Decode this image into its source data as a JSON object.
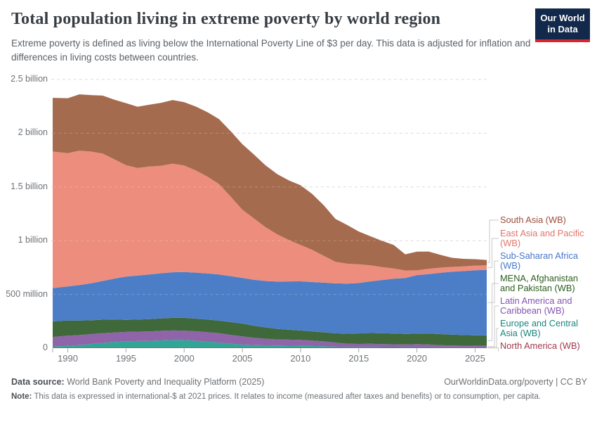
{
  "header": {
    "title": "Total population living in extreme poverty by world region",
    "subtitle": "Extreme poverty is defined as living below the International Poverty Line of $3 per day. This data is adjusted for inflation and differences in living costs between countries.",
    "logo_line1": "Our World",
    "logo_line2": "in Data",
    "logo_bg": "#13294b",
    "logo_accent": "#d8252e"
  },
  "footer": {
    "source_label": "Data source:",
    "source_value": "World Bank Poverty and Inequality Platform (2025)",
    "attribution": "OurWorldinData.org/poverty | CC BY",
    "note_label": "Note:",
    "note_value": "This data is expressed in international-$ at 2021 prices. It relates to income (measured after taxes and benefits) or to consumption, per capita."
  },
  "chart_data": {
    "type": "area",
    "stacked": true,
    "title": "Total population living in extreme poverty by world region",
    "xlabel": "",
    "ylabel": "",
    "unit": "millions of people",
    "grid": "dashed-horizontal",
    "legend_position": "right",
    "xlim": [
      1989,
      2026
    ],
    "ylim": [
      0,
      2500
    ],
    "xticks": [
      1990,
      1995,
      2000,
      2005,
      2010,
      2015,
      2020,
      2025
    ],
    "yticks": [
      {
        "value": 0,
        "label": "0"
      },
      {
        "value": 500,
        "label": "500 million"
      },
      {
        "value": 1000,
        "label": "1 billion"
      },
      {
        "value": 1500,
        "label": "1.5 billion"
      },
      {
        "value": 2000,
        "label": "2 billion"
      },
      {
        "value": 2500,
        "label": "2.5 billion"
      }
    ],
    "x": [
      1989,
      1990,
      1991,
      1992,
      1993,
      1994,
      1995,
      1996,
      1997,
      1998,
      1999,
      2000,
      2001,
      2002,
      2003,
      2004,
      2005,
      2006,
      2007,
      2008,
      2009,
      2010,
      2011,
      2012,
      2013,
      2014,
      2015,
      2016,
      2017,
      2018,
      2019,
      2020,
      2021,
      2022,
      2023,
      2024,
      2025,
      2026
    ],
    "series_note": "values in millions, listed bottom-to-top of the stack; legend shows reverse order",
    "series": [
      {
        "id": "north-america",
        "name": "North America (WB)",
        "color": "#9A3E53",
        "label_color": "#A03A4C",
        "values": [
          4,
          4,
          4,
          4,
          4,
          4,
          4,
          4,
          4,
          4,
          4,
          4,
          4,
          4,
          4,
          4,
          4,
          4,
          4,
          4,
          4,
          4,
          4,
          4,
          3,
          3,
          3,
          3,
          3,
          3,
          3,
          3,
          3,
          3,
          3,
          3,
          3,
          3
        ]
      },
      {
        "id": "europe-central-asia",
        "name": "Europe and Central Asia (WB)",
        "color": "#32A596",
        "label_color": "#19857C",
        "values": [
          12,
          17,
          25,
          35,
          45,
          52,
          60,
          62,
          64,
          68,
          72,
          72,
          65,
          55,
          48,
          38,
          29,
          25,
          22,
          20,
          19,
          18,
          16,
          14,
          11,
          9,
          8,
          8,
          7,
          7,
          6,
          6,
          6,
          5,
          5,
          5,
          5,
          5
        ]
      },
      {
        "id": "latin-america-caribbean",
        "name": "Latin America and Caribbean (WB)",
        "color": "#8F64A8",
        "label_color": "#8455B1",
        "values": [
          88,
          95,
          93,
          92,
          91,
          89,
          87,
          88,
          88,
          89,
          88,
          87,
          88,
          90,
          88,
          82,
          76,
          68,
          62,
          57,
          56,
          55,
          50,
          45,
          38,
          30,
          28,
          30,
          28,
          26,
          25,
          28,
          26,
          20,
          17,
          15,
          14,
          14
        ]
      },
      {
        "id": "mena-afghanistan-pakistan",
        "name": "MENA, Afghanistan and Pakistan (WB)",
        "color": "#3F683B",
        "label_color": "#2C5E1E",
        "values": [
          145,
          142,
          135,
          128,
          125,
          122,
          112,
          112,
          114,
          116,
          118,
          119,
          118,
          117,
          116,
          118,
          120,
          112,
          105,
          98,
          92,
          87,
          85,
          84,
          86,
          92,
          98,
          100,
          101,
          100,
          99,
          98,
          102,
          103,
          101,
          99,
          98,
          97
        ]
      },
      {
        "id": "sub-saharan-africa",
        "name": "Sub-Saharan Africa (WB)",
        "color": "#4C7EC7",
        "label_color": "#4877C8",
        "values": [
          310,
          316,
          330,
          345,
          360,
          380,
          403,
          410,
          415,
          420,
          424,
          426,
          428,
          430,
          430,
          428,
          425,
          428,
          432,
          440,
          450,
          458,
          460,
          462,
          465,
          467,
          469,
          480,
          495,
          510,
          520,
          545,
          552,
          570,
          585,
          595,
          605,
          610
        ]
      },
      {
        "id": "east-asia-pacific",
        "name": "East Asia and Pacific (WB)",
        "color": "#ED8D7D",
        "label_color": "#E0766A",
        "values": [
          1270,
          1241,
          1250,
          1225,
          1185,
          1110,
          1036,
          1000,
          1005,
          1000,
          1010,
          992,
          950,
          900,
          840,
          740,
          633,
          570,
          500,
          440,
          385,
          338,
          300,
          250,
          200,
          185,
          174,
          150,
          120,
          95,
          70,
          44,
          50,
          48,
          45,
          44,
          43,
          42
        ]
      },
      {
        "id": "south-asia",
        "name": "South Asia (WB)",
        "color": "#A56B4F",
        "label_color": "#9C4E3B",
        "values": [
          500,
          511,
          525,
          525,
          540,
          555,
          578,
          570,
          575,
          585,
          592,
          589,
          595,
          600,
          605,
          608,
          611,
          595,
          575,
          560,
          555,
          556,
          520,
          470,
          400,
          360,
          306,
          270,
          245,
          220,
          150,
          174,
          160,
          120,
          85,
          70,
          60,
          50
        ]
      }
    ]
  }
}
